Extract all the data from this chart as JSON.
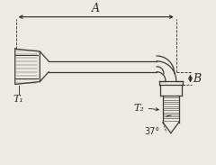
{
  "bg_color": "#ede9e3",
  "line_color": "#3a3a3a",
  "dim_color": "#2a2a2a",
  "T1_label": "T₁",
  "T2_label": "T₂",
  "A_label": "A",
  "B_label": "B",
  "angle_label": "37°",
  "figw": 2.4,
  "figh": 1.83,
  "dpi": 100
}
